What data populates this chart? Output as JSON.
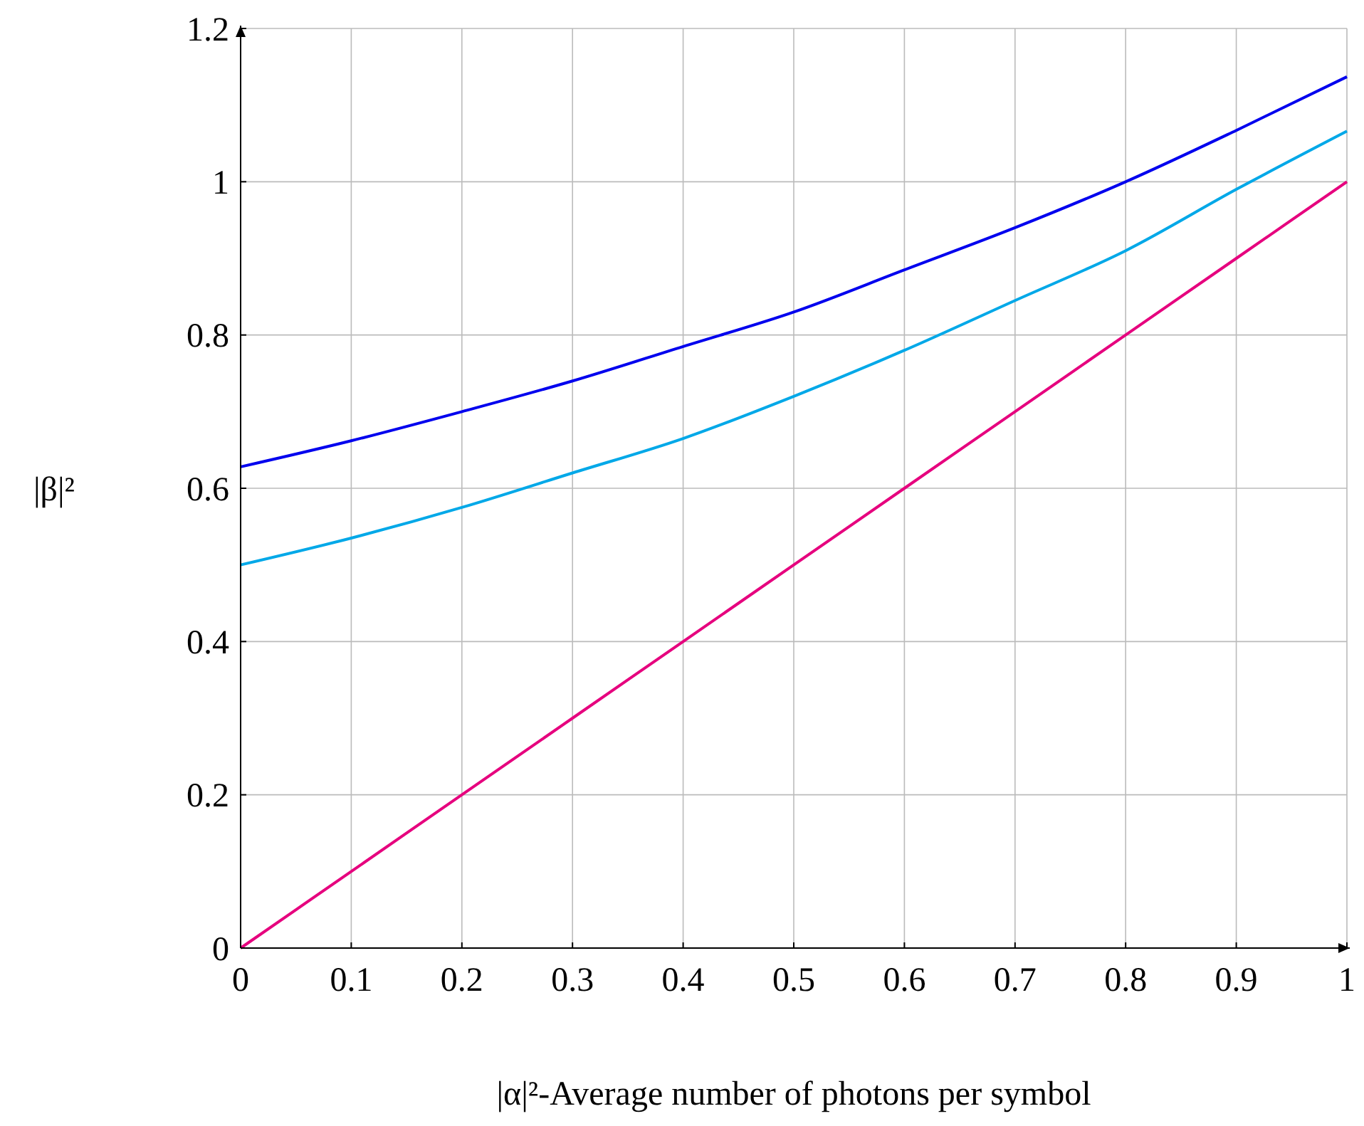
{
  "chart_data": {
    "type": "line",
    "xlabel": "|α|²-Average number of photons per symbol",
    "ylabel": "|β|²",
    "x": [
      0,
      0.1,
      0.2,
      0.3,
      0.4,
      0.5,
      0.6,
      0.7,
      0.8,
      0.9,
      1
    ],
    "series": [
      {
        "color": "#0000ee",
        "values": [
          0.628,
          0.662,
          0.7,
          0.74,
          0.785,
          0.83,
          0.885,
          0.94,
          1.0,
          1.067,
          1.137
        ]
      },
      {
        "color": "#00a8e8",
        "values": [
          0.5,
          0.535,
          0.575,
          0.62,
          0.665,
          0.72,
          0.78,
          0.845,
          0.91,
          0.99,
          1.066
        ]
      },
      {
        "color": "#e6007e",
        "values": [
          0,
          0.1,
          0.2,
          0.3,
          0.4,
          0.5,
          0.6,
          0.7,
          0.8,
          0.9,
          1
        ]
      }
    ],
    "xlim": [
      0,
      1
    ],
    "ylim": [
      0,
      1.2
    ],
    "xticks": [
      0,
      0.1,
      0.2,
      0.3,
      0.4,
      0.5,
      0.6,
      0.7,
      0.8,
      0.9,
      1
    ],
    "yticks": [
      0,
      0.2,
      0.4,
      0.6,
      0.8,
      1,
      1.2
    ],
    "grid": true
  }
}
